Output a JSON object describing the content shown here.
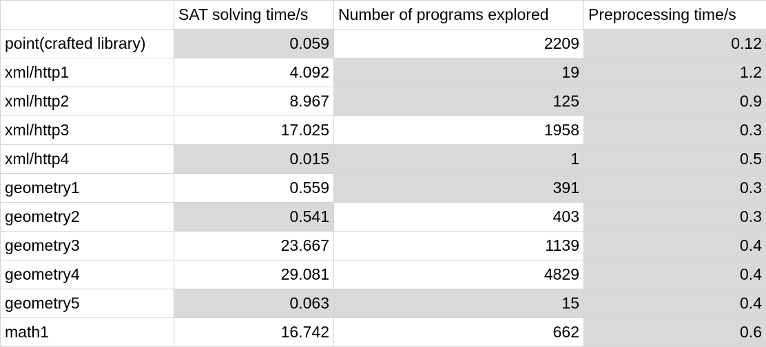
{
  "table": {
    "headers": [
      "",
      "SAT solving time/s",
      "Number of programs explored",
      "Preprocessing time/s"
    ],
    "rows": [
      {
        "name": "point(crafted library)",
        "sat": "0.059",
        "programs": "2209",
        "pre": "0.12",
        "shade": [
          true,
          false,
          true
        ]
      },
      {
        "name": "xml/http1",
        "sat": "4.092",
        "programs": "19",
        "pre": "1.2",
        "shade": [
          false,
          true,
          true
        ]
      },
      {
        "name": "xml/http2",
        "sat": "8.967",
        "programs": "125",
        "pre": "0.9",
        "shade": [
          false,
          true,
          true
        ]
      },
      {
        "name": "xml/http3",
        "sat": "17.025",
        "programs": "1958",
        "pre": "0.3",
        "shade": [
          false,
          false,
          true
        ]
      },
      {
        "name": "xml/http4",
        "sat": "0.015",
        "programs": "1",
        "pre": "0.5",
        "shade": [
          true,
          true,
          true
        ]
      },
      {
        "name": "geometry1",
        "sat": "0.559",
        "programs": "391",
        "pre": "0.3",
        "shade": [
          false,
          true,
          true
        ]
      },
      {
        "name": "geometry2",
        "sat": "0.541",
        "programs": "403",
        "pre": "0.3",
        "shade": [
          true,
          false,
          true
        ]
      },
      {
        "name": "geometry3",
        "sat": "23.667",
        "programs": "1139",
        "pre": "0.4",
        "shade": [
          false,
          false,
          true
        ]
      },
      {
        "name": "geometry4",
        "sat": "29.081",
        "programs": "4829",
        "pre": "0.4",
        "shade": [
          false,
          false,
          true
        ]
      },
      {
        "name": "geometry5",
        "sat": "0.063",
        "programs": "15",
        "pre": "0.4",
        "shade": [
          true,
          true,
          true
        ]
      },
      {
        "name": "math1",
        "sat": "16.742",
        "programs": "662",
        "pre": "0.6",
        "shade": [
          false,
          false,
          true
        ]
      }
    ]
  }
}
